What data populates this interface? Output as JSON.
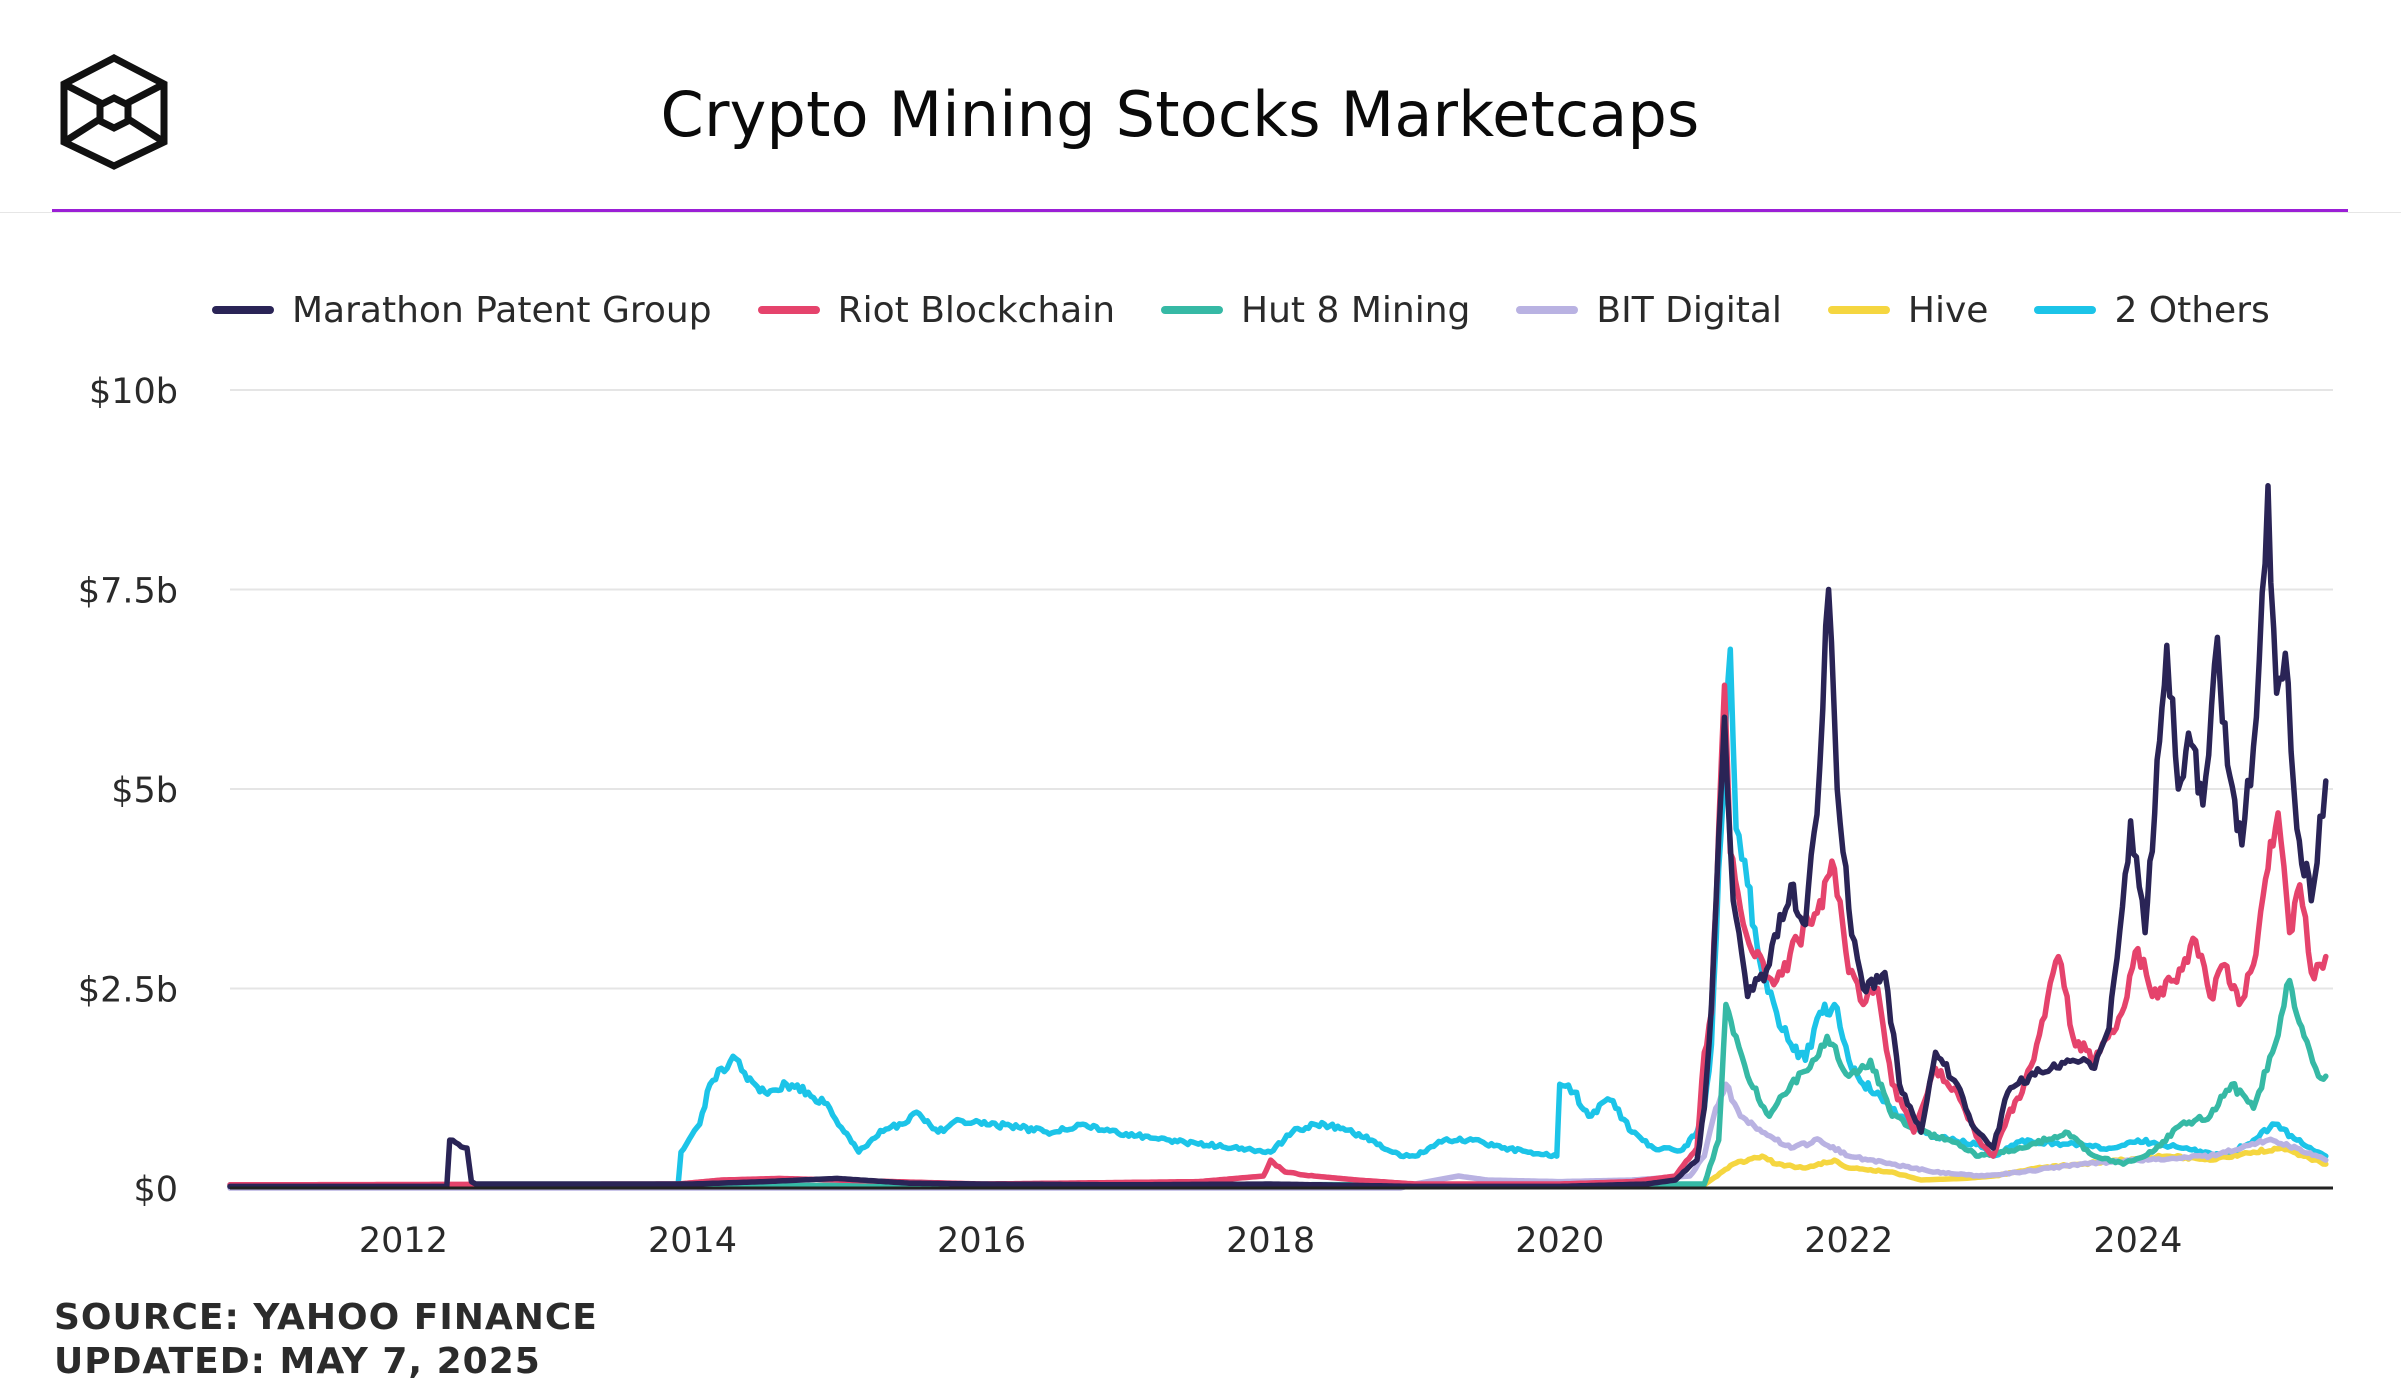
{
  "title": "Crypto Mining Stocks Marketcaps",
  "footer": {
    "source": "SOURCE: YAHOO FINANCE",
    "updated": "UPDATED: MAY 7, 2025"
  },
  "colors": {
    "accent": "#9b1fd6",
    "grid": "#e5e5e5",
    "axis": "#222222"
  },
  "chart_data": {
    "type": "line",
    "title": "Crypto Mining Stocks Marketcaps",
    "xlabel": "",
    "ylabel": "",
    "xlim": [
      2010.8,
      2025.35
    ],
    "ylim": [
      0,
      10
    ],
    "y_ticks": [
      0,
      2.5,
      5,
      7.5,
      10
    ],
    "y_tick_labels": [
      "$0",
      "$2.5b",
      "$5b",
      "$7.5b",
      "$10b"
    ],
    "x_ticks": [
      2012,
      2014,
      2016,
      2018,
      2020,
      2022,
      2024
    ],
    "x_tick_labels": [
      "2012",
      "2014",
      "2016",
      "2018",
      "2020",
      "2022",
      "2024"
    ],
    "grid": true,
    "legend_position": "top",
    "series": [
      {
        "name": "2 Others",
        "color": "#1cc4e8",
        "points": [
          [
            2010.8,
            0.04
          ],
          [
            2013.9,
            0.04
          ],
          [
            2013.92,
            0.45
          ],
          [
            2014.05,
            0.8
          ],
          [
            2014.12,
            1.3
          ],
          [
            2014.2,
            1.5
          ],
          [
            2014.3,
            1.62
          ],
          [
            2014.38,
            1.35
          ],
          [
            2014.5,
            1.2
          ],
          [
            2014.65,
            1.3
          ],
          [
            2014.8,
            1.2
          ],
          [
            2014.95,
            1.0
          ],
          [
            2015.05,
            0.7
          ],
          [
            2015.15,
            0.45
          ],
          [
            2015.3,
            0.72
          ],
          [
            2015.45,
            0.8
          ],
          [
            2015.55,
            0.95
          ],
          [
            2015.7,
            0.7
          ],
          [
            2015.85,
            0.85
          ],
          [
            2016.0,
            0.8
          ],
          [
            2016.2,
            0.78
          ],
          [
            2016.45,
            0.7
          ],
          [
            2016.7,
            0.8
          ],
          [
            2016.85,
            0.72
          ],
          [
            2017.0,
            0.68
          ],
          [
            2017.3,
            0.6
          ],
          [
            2017.5,
            0.55
          ],
          [
            2017.8,
            0.5
          ],
          [
            2018.0,
            0.45
          ],
          [
            2018.15,
            0.7
          ],
          [
            2018.3,
            0.8
          ],
          [
            2018.5,
            0.75
          ],
          [
            2018.7,
            0.6
          ],
          [
            2018.9,
            0.4
          ],
          [
            2019.0,
            0.4
          ],
          [
            2019.2,
            0.6
          ],
          [
            2019.4,
            0.6
          ],
          [
            2019.6,
            0.5
          ],
          [
            2019.8,
            0.45
          ],
          [
            2019.98,
            0.4
          ],
          [
            2020.0,
            1.3
          ],
          [
            2020.1,
            1.2
          ],
          [
            2020.2,
            0.9
          ],
          [
            2020.35,
            1.1
          ],
          [
            2020.5,
            0.7
          ],
          [
            2020.65,
            0.5
          ],
          [
            2020.85,
            0.48
          ],
          [
            2020.95,
            0.7
          ],
          [
            2021.0,
            1.0
          ],
          [
            2021.05,
            1.8
          ],
          [
            2021.1,
            4.0
          ],
          [
            2021.15,
            5.8
          ],
          [
            2021.18,
            6.75
          ],
          [
            2021.22,
            4.5
          ],
          [
            2021.3,
            3.8
          ],
          [
            2021.4,
            2.7
          ],
          [
            2021.5,
            2.2
          ],
          [
            2021.6,
            1.8
          ],
          [
            2021.7,
            1.6
          ],
          [
            2021.8,
            2.2
          ],
          [
            2021.9,
            2.3
          ],
          [
            2022.0,
            1.6
          ],
          [
            2022.1,
            1.3
          ],
          [
            2022.2,
            1.2
          ],
          [
            2022.35,
            0.9
          ],
          [
            2022.5,
            0.7
          ],
          [
            2022.7,
            0.6
          ],
          [
            2022.9,
            0.55
          ],
          [
            2023.0,
            0.4
          ],
          [
            2023.2,
            0.6
          ],
          [
            2023.5,
            0.55
          ],
          [
            2023.8,
            0.5
          ],
          [
            2024.0,
            0.6
          ],
          [
            2024.3,
            0.5
          ],
          [
            2024.6,
            0.4
          ],
          [
            2024.8,
            0.6
          ],
          [
            2024.95,
            0.8
          ],
          [
            2025.1,
            0.6
          ],
          [
            2025.3,
            0.4
          ]
        ]
      },
      {
        "name": "Hive",
        "color": "#f5d640",
        "points": [
          [
            2010.8,
            0.02
          ],
          [
            2021.0,
            0.04
          ],
          [
            2021.2,
            0.3
          ],
          [
            2021.4,
            0.4
          ],
          [
            2021.5,
            0.3
          ],
          [
            2021.7,
            0.25
          ],
          [
            2021.9,
            0.35
          ],
          [
            2022.0,
            0.25
          ],
          [
            2022.3,
            0.2
          ],
          [
            2022.5,
            0.1
          ],
          [
            2022.8,
            0.12
          ],
          [
            2023.0,
            0.15
          ],
          [
            2023.3,
            0.25
          ],
          [
            2023.6,
            0.3
          ],
          [
            2023.9,
            0.35
          ],
          [
            2024.2,
            0.4
          ],
          [
            2024.5,
            0.35
          ],
          [
            2024.8,
            0.45
          ],
          [
            2025.0,
            0.5
          ],
          [
            2025.3,
            0.3
          ]
        ]
      },
      {
        "name": "BIT Digital",
        "color": "#b9b2e2",
        "points": [
          [
            2010.8,
            0.0
          ],
          [
            2018.9,
            0.0
          ],
          [
            2019.0,
            0.05
          ],
          [
            2019.3,
            0.15
          ],
          [
            2019.5,
            0.1
          ],
          [
            2020.0,
            0.08
          ],
          [
            2020.5,
            0.1
          ],
          [
            2020.9,
            0.15
          ],
          [
            2021.0,
            0.4
          ],
          [
            2021.08,
            1.0
          ],
          [
            2021.15,
            1.3
          ],
          [
            2021.25,
            0.9
          ],
          [
            2021.4,
            0.7
          ],
          [
            2021.6,
            0.5
          ],
          [
            2021.8,
            0.6
          ],
          [
            2022.0,
            0.4
          ],
          [
            2022.3,
            0.3
          ],
          [
            2022.6,
            0.2
          ],
          [
            2022.9,
            0.15
          ],
          [
            2023.2,
            0.2
          ],
          [
            2023.6,
            0.3
          ],
          [
            2024.0,
            0.35
          ],
          [
            2024.5,
            0.4
          ],
          [
            2024.9,
            0.6
          ],
          [
            2025.1,
            0.5
          ],
          [
            2025.3,
            0.35
          ]
        ]
      },
      {
        "name": "Hut 8 Mining",
        "color": "#36b9a5",
        "points": [
          [
            2010.8,
            0.02
          ],
          [
            2021.0,
            0.05
          ],
          [
            2021.1,
            0.6
          ],
          [
            2021.15,
            2.3
          ],
          [
            2021.22,
            1.9
          ],
          [
            2021.3,
            1.4
          ],
          [
            2021.45,
            0.9
          ],
          [
            2021.6,
            1.3
          ],
          [
            2021.75,
            1.6
          ],
          [
            2021.85,
            1.9
          ],
          [
            2022.0,
            1.4
          ],
          [
            2022.15,
            1.6
          ],
          [
            2022.3,
            0.9
          ],
          [
            2022.5,
            0.7
          ],
          [
            2022.7,
            0.6
          ],
          [
            2022.9,
            0.4
          ],
          [
            2023.2,
            0.5
          ],
          [
            2023.5,
            0.7
          ],
          [
            2023.7,
            0.4
          ],
          [
            2023.9,
            0.3
          ],
          [
            2024.1,
            0.45
          ],
          [
            2024.3,
            0.8
          ],
          [
            2024.5,
            0.9
          ],
          [
            2024.65,
            1.3
          ],
          [
            2024.8,
            1.0
          ],
          [
            2024.95,
            1.8
          ],
          [
            2025.05,
            2.6
          ],
          [
            2025.15,
            1.9
          ],
          [
            2025.25,
            1.4
          ],
          [
            2025.3,
            1.4
          ]
        ]
      },
      {
        "name": "Riot Blockchain",
        "color": "#e5436c",
        "points": [
          [
            2010.8,
            0.04
          ],
          [
            2013.9,
            0.05
          ],
          [
            2014.2,
            0.1
          ],
          [
            2014.6,
            0.12
          ],
          [
            2015.0,
            0.1
          ],
          [
            2016.0,
            0.05
          ],
          [
            2017.5,
            0.08
          ],
          [
            2017.95,
            0.15
          ],
          [
            2018.0,
            0.35
          ],
          [
            2018.1,
            0.2
          ],
          [
            2018.3,
            0.15
          ],
          [
            2018.6,
            0.1
          ],
          [
            2019.0,
            0.05
          ],
          [
            2019.5,
            0.05
          ],
          [
            2020.0,
            0.05
          ],
          [
            2020.5,
            0.08
          ],
          [
            2020.8,
            0.15
          ],
          [
            2020.95,
            0.5
          ],
          [
            2021.0,
            1.7
          ],
          [
            2021.05,
            2.2
          ],
          [
            2021.1,
            4.5
          ],
          [
            2021.14,
            6.3
          ],
          [
            2021.18,
            4.2
          ],
          [
            2021.25,
            3.5
          ],
          [
            2021.35,
            2.9
          ],
          [
            2021.5,
            2.6
          ],
          [
            2021.65,
            3.1
          ],
          [
            2021.8,
            3.6
          ],
          [
            2021.9,
            4.0
          ],
          [
            2022.0,
            2.7
          ],
          [
            2022.1,
            2.3
          ],
          [
            2022.2,
            2.5
          ],
          [
            2022.3,
            1.3
          ],
          [
            2022.45,
            0.7
          ],
          [
            2022.6,
            1.5
          ],
          [
            2022.75,
            1.2
          ],
          [
            2022.9,
            0.6
          ],
          [
            2023.0,
            0.4
          ],
          [
            2023.1,
            0.9
          ],
          [
            2023.2,
            1.2
          ],
          [
            2023.3,
            1.8
          ],
          [
            2023.45,
            2.9
          ],
          [
            2023.55,
            1.9
          ],
          [
            2023.7,
            1.6
          ],
          [
            2023.85,
            2.0
          ],
          [
            2024.0,
            3.0
          ],
          [
            2024.1,
            2.4
          ],
          [
            2024.25,
            2.6
          ],
          [
            2024.4,
            3.1
          ],
          [
            2024.5,
            2.4
          ],
          [
            2024.6,
            2.8
          ],
          [
            2024.7,
            2.3
          ],
          [
            2024.8,
            2.8
          ],
          [
            2024.9,
            4.0
          ],
          [
            2024.97,
            4.7
          ],
          [
            2025.05,
            3.2
          ],
          [
            2025.12,
            3.8
          ],
          [
            2025.2,
            2.7
          ],
          [
            2025.3,
            2.9
          ]
        ]
      },
      {
        "name": "Marathon Patent Group",
        "color": "#2a2456",
        "points": [
          [
            2010.8,
            0.02
          ],
          [
            2012.3,
            0.02
          ],
          [
            2012.32,
            0.6
          ],
          [
            2012.38,
            0.55
          ],
          [
            2012.44,
            0.5
          ],
          [
            2012.47,
            0.08
          ],
          [
            2012.5,
            0.05
          ],
          [
            2014.0,
            0.05
          ],
          [
            2014.5,
            0.08
          ],
          [
            2015.0,
            0.12
          ],
          [
            2015.5,
            0.06
          ],
          [
            2016.0,
            0.05
          ],
          [
            2017.0,
            0.04
          ],
          [
            2018.0,
            0.05
          ],
          [
            2019.0,
            0.02
          ],
          [
            2020.0,
            0.02
          ],
          [
            2020.6,
            0.05
          ],
          [
            2020.8,
            0.1
          ],
          [
            2020.95,
            0.35
          ],
          [
            2021.0,
            1.0
          ],
          [
            2021.05,
            2.3
          ],
          [
            2021.1,
            4.4
          ],
          [
            2021.14,
            5.9
          ],
          [
            2021.2,
            3.6
          ],
          [
            2021.3,
            2.4
          ],
          [
            2021.45,
            2.8
          ],
          [
            2021.6,
            3.8
          ],
          [
            2021.7,
            3.3
          ],
          [
            2021.8,
            5.3
          ],
          [
            2021.86,
            7.5
          ],
          [
            2021.92,
            5.0
          ],
          [
            2022.0,
            3.5
          ],
          [
            2022.1,
            2.5
          ],
          [
            2022.25,
            2.7
          ],
          [
            2022.35,
            1.3
          ],
          [
            2022.5,
            0.7
          ],
          [
            2022.6,
            1.7
          ],
          [
            2022.75,
            1.3
          ],
          [
            2022.85,
            0.8
          ],
          [
            2023.0,
            0.5
          ],
          [
            2023.1,
            1.2
          ],
          [
            2023.25,
            1.4
          ],
          [
            2023.4,
            1.5
          ],
          [
            2023.55,
            1.6
          ],
          [
            2023.7,
            1.5
          ],
          [
            2023.8,
            2.0
          ],
          [
            2023.95,
            4.6
          ],
          [
            2024.05,
            3.2
          ],
          [
            2024.15,
            5.6
          ],
          [
            2024.2,
            6.8
          ],
          [
            2024.28,
            5.0
          ],
          [
            2024.35,
            5.7
          ],
          [
            2024.45,
            4.8
          ],
          [
            2024.55,
            6.9
          ],
          [
            2024.62,
            5.3
          ],
          [
            2024.72,
            4.3
          ],
          [
            2024.82,
            5.9
          ],
          [
            2024.9,
            8.8
          ],
          [
            2024.96,
            6.2
          ],
          [
            2025.02,
            6.7
          ],
          [
            2025.1,
            4.5
          ],
          [
            2025.2,
            3.6
          ],
          [
            2025.3,
            5.1
          ]
        ]
      }
    ]
  }
}
